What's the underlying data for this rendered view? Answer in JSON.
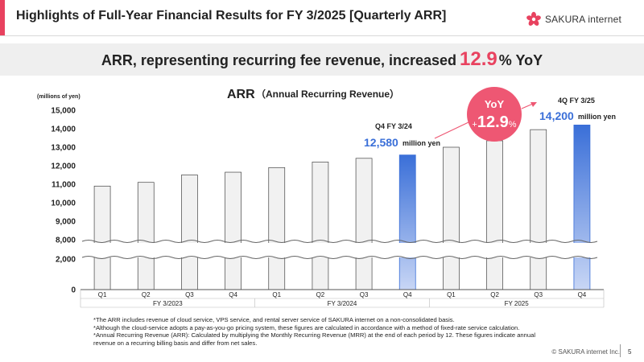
{
  "header": {
    "title": "Highlights of Full-Year Financial Results for FY 3/2025 [Quarterly ARR]",
    "logo_text": "SAKURA internet",
    "accent_color": "#e8425f"
  },
  "banner": {
    "headline_prefix": "ARR, representing recurring fee revenue, increased",
    "headline_value": "12.9",
    "headline_suffix": "% YoY"
  },
  "chart_data": {
    "type": "bar",
    "title": "ARR",
    "subtitle": "（Annual Recurring Revenue）",
    "ylabel": "(millions of yen)",
    "categories": [
      "Q1",
      "Q2",
      "Q3",
      "Q4",
      "Q1",
      "Q2",
      "Q3",
      "Q4",
      "Q1",
      "Q2",
      "Q3",
      "Q4"
    ],
    "groups": [
      {
        "label": "FY 3/2023",
        "start": 0,
        "end": 3
      },
      {
        "label": "FY 3/2024",
        "start": 4,
        "end": 7
      },
      {
        "label": "FY 2025",
        "start": 8,
        "end": 11
      }
    ],
    "values": [
      10900,
      11100,
      11500,
      11650,
      11900,
      12200,
      12400,
      12580,
      13000,
      13350,
      13950,
      14200
    ],
    "highlighted": [
      7,
      11
    ],
    "y_ticks_upper": [
      "15,000",
      "14,000",
      "13,000",
      "12,000",
      "11,000",
      "10,000",
      "9,000",
      "8,000"
    ],
    "y_ticks_lower": [
      "2,000",
      "0"
    ],
    "axis_break": [
      2000,
      8000
    ],
    "ylim": [
      0,
      15000
    ],
    "colors": {
      "normal_bar": "#f1f1f1",
      "normal_border": "#444444",
      "highlight_top": "#3a6fd8",
      "highlight_bottom": "#c8d6f5",
      "value_blue": "#3a6fd8",
      "accent": "#e8425f"
    },
    "annotations": {
      "q4_2024_label": "Q4 FY 3/24",
      "q4_2024_value": "12,580",
      "q4_2025_label": "4Q FY 3/25",
      "q4_2025_value": "14,200",
      "unit": "million yen",
      "yoy_label": "YoY",
      "yoy_sign": "+",
      "yoy_value": "12.9",
      "yoy_pct": "%"
    }
  },
  "notes": [
    "*The ARR includes revenue of cloud service, VPS service, and rental server service of SAKURA internet on a non-consolidated basis.",
    "*Although the cloud-service adopts a pay-as-you-go pricing system, these figures are calculated in accordance with a method of fixed-rate service calculation.",
    "*Annual Recurring Revenue (ARR): Calculated by multiplying the Monthly Recurring Revenue (MRR) at the end of each period by 12. These figures indicate annual revenue on a recurring billing basis and differ from net sales."
  ],
  "footer": {
    "copyright": "© SAKURA internet Inc.",
    "page_number": "5"
  }
}
